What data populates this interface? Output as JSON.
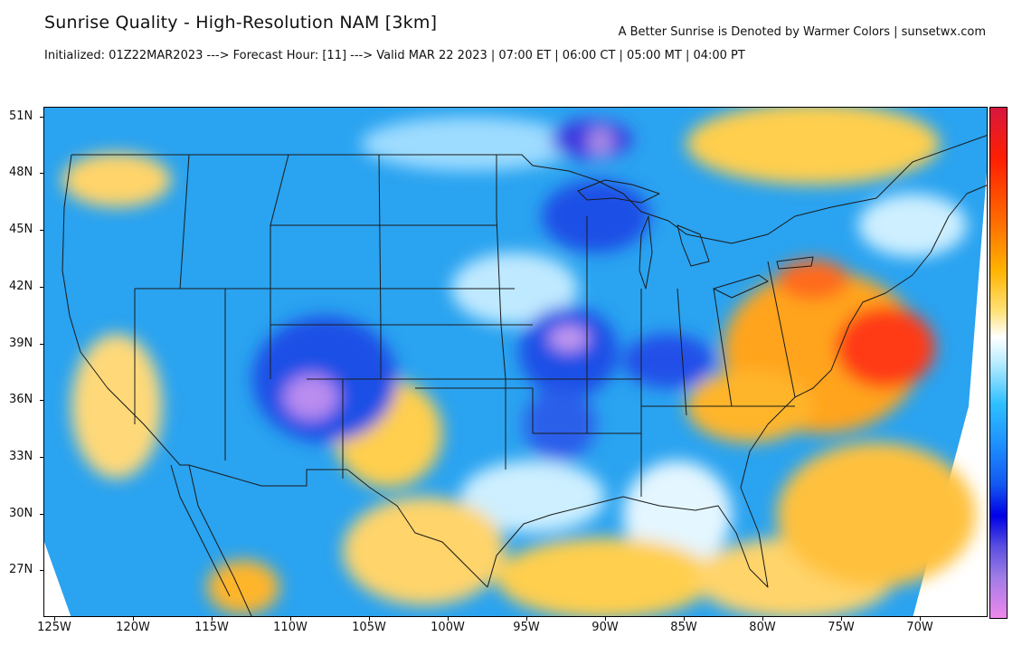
{
  "header": {
    "title": "Sunrise Quality - High-Resolution NAM [3km]",
    "subtitle": "Initialized: 01Z22MAR2023 ---> Forecast Hour: [11] ---> Valid MAR 22 2023 | 07:00 ET | 06:00 CT | 05:00 MT | 04:00 PT",
    "credit": "A Better Sunrise is Denoted by Warmer Colors | sunsetwx.com"
  },
  "axes": {
    "lat_labels": [
      "51N",
      "48N",
      "45N",
      "42N",
      "39N",
      "36N",
      "33N",
      "30N",
      "27N"
    ],
    "lon_labels": [
      "125W",
      "120W",
      "115W",
      "110W",
      "105W",
      "100W",
      "95W",
      "90W",
      "85W",
      "80W",
      "75W",
      "70W"
    ]
  },
  "colorbar": {
    "colors": [
      "#d8173f",
      "#ff1f00",
      "#ff6a00",
      "#ffb400",
      "#ffe27a",
      "#ffffff",
      "#b8ecff",
      "#2fc0ff",
      "#1e90ff",
      "#1256f0",
      "#0000e6",
      "#a07ce6",
      "#ee88ec"
    ]
  },
  "map": {
    "palette": {
      "base_blue": "#2aa3f0",
      "light_blue": "#8fd6ff",
      "dark_blue": "#1b4fe6",
      "violet": "#6b55e8",
      "pink": "#d49af0",
      "yellow": "#ffcf4d",
      "orange": "#ffa41a",
      "red": "#ff3a14",
      "white": "#ffffff"
    }
  }
}
